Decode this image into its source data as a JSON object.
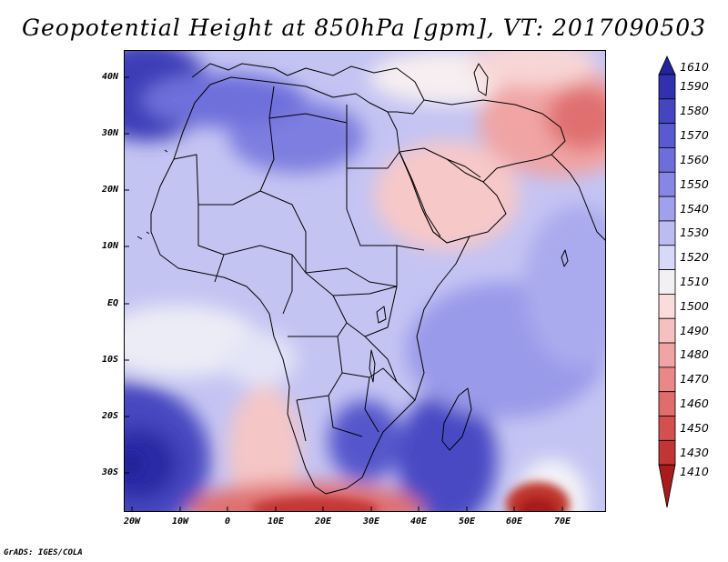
{
  "title": "Geopotential Height at 850hPa [gpm], VT: 2017090503",
  "credit": "GrADS: IGES/COLA",
  "lat_labels": [
    "40N",
    "30N",
    "20N",
    "10N",
    "EQ",
    "10S",
    "20S",
    "30S"
  ],
  "lon_labels": [
    "20W",
    "10W",
    "0",
    "10E",
    "20E",
    "30E",
    "40E",
    "50E",
    "60E",
    "70E"
  ],
  "colorbar": {
    "levels": [
      "1610",
      "1590",
      "1580",
      "1570",
      "1560",
      "1550",
      "1540",
      "1530",
      "1520",
      "1510",
      "1500",
      "1490",
      "1480",
      "1470",
      "1460",
      "1450",
      "1430",
      "1410"
    ],
    "colors": [
      "#24249a",
      "#3131b0",
      "#4545c0",
      "#5a5ad0",
      "#6e6edb",
      "#8686e4",
      "#a0a0ec",
      "#bcbcf3",
      "#d8d8f9",
      "#f3f0f3",
      "#fbdcdc",
      "#f6c0c0",
      "#f0a4a4",
      "#e98888",
      "#e06c6c",
      "#d44f4f",
      "#c33434",
      "#a81c1c"
    ]
  }
}
